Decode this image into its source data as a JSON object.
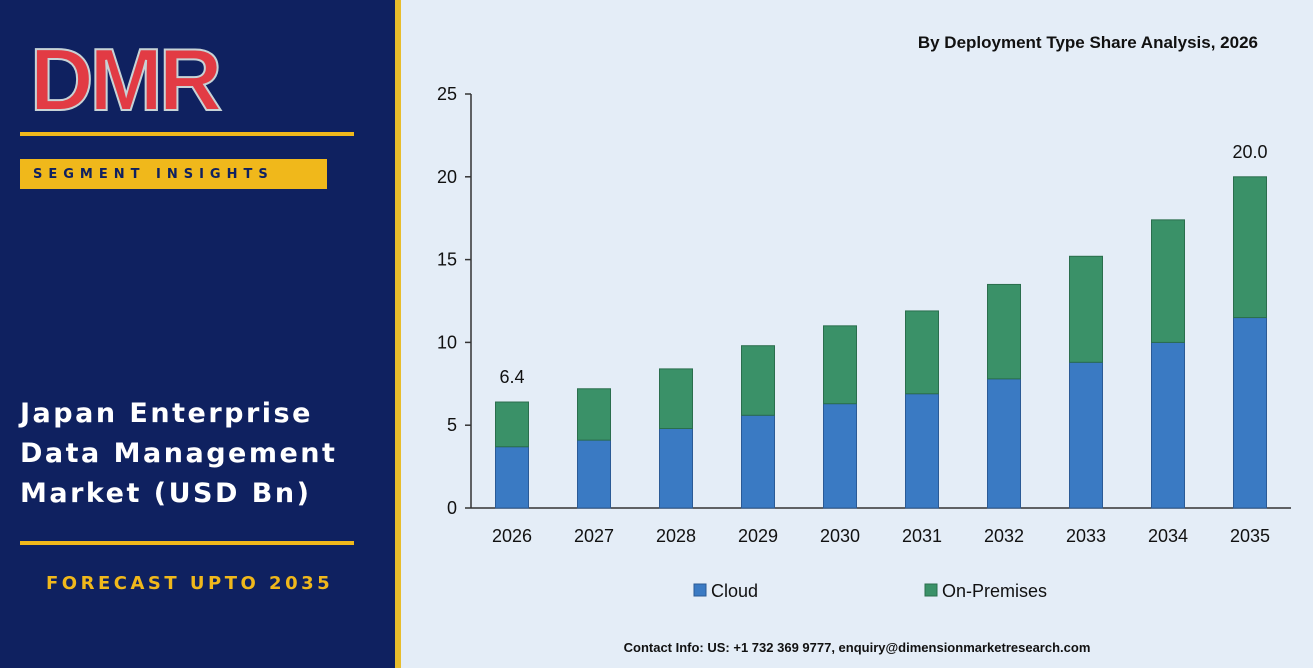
{
  "brand": {
    "logo_text": "DMR"
  },
  "left_panel": {
    "badge": "SEGMENT INSIGHTS",
    "title_lines": [
      "Japan Enterprise",
      "Data Management",
      "Market (USD Bn)"
    ],
    "forecast": "FORECAST UPTO 2035"
  },
  "contact": "Contact Info: US: +1 732 369 9777, enquiry@dimensionmarketresearch.com",
  "colors": {
    "panel": "#0f2160",
    "accent": "#f0b81b",
    "cloud": "#3a7ac3",
    "on_premises": "#3a9168",
    "background": "#e4edf7"
  },
  "chart_data": {
    "type": "bar",
    "stacked": true,
    "title": "By Deployment Type Share Analysis, 2026",
    "categories": [
      "2026",
      "2027",
      "2028",
      "2029",
      "2030",
      "2031",
      "2032",
      "2033",
      "2034",
      "2035"
    ],
    "series": [
      {
        "name": "Cloud",
        "values": [
          3.7,
          4.1,
          4.8,
          5.6,
          6.3,
          6.9,
          7.8,
          8.8,
          10.0,
          11.5
        ]
      },
      {
        "name": "On-Premises",
        "values": [
          2.7,
          3.1,
          3.6,
          4.2,
          4.7,
          5.0,
          5.7,
          6.4,
          7.4,
          8.5
        ]
      }
    ],
    "totals_labels": {
      "2026": "6.4",
      "2035": "20.0"
    },
    "ylim": [
      0,
      25
    ],
    "yticks": [
      0,
      5,
      10,
      15,
      20,
      25
    ],
    "grid": false,
    "legend_position": "bottom"
  }
}
